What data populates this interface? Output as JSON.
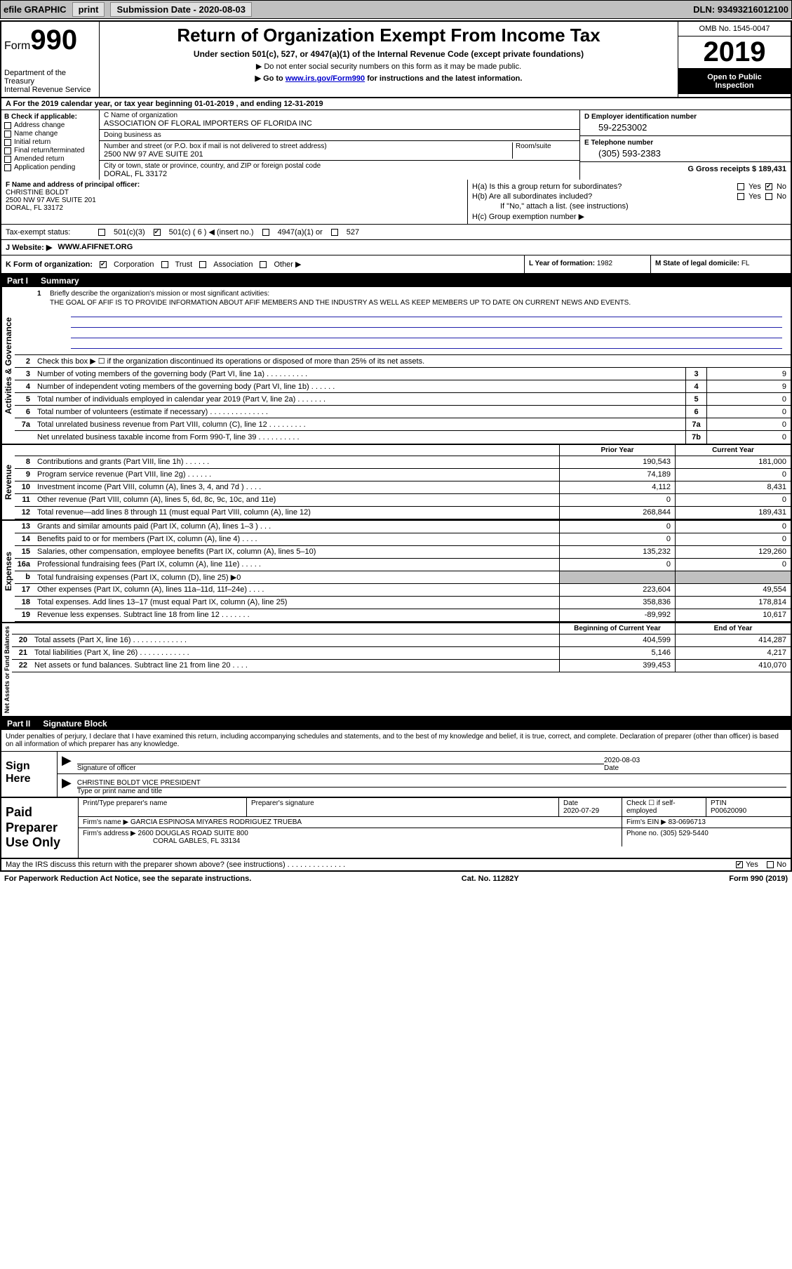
{
  "topbar": {
    "efile": "efile GRAPHIC",
    "print": "print",
    "sub_label": "Submission Date - ",
    "sub_date": "2020-08-03",
    "dln_label": "DLN: ",
    "dln": "93493216012100"
  },
  "header": {
    "form_prefix": "Form",
    "form_number": "990",
    "dept": "Department of the Treasury",
    "irs": "Internal Revenue Service",
    "title": "Return of Organization Exempt From Income Tax",
    "subtitle": "Under section 501(c), 527, or 4947(a)(1) of the Internal Revenue Code (except private foundations)",
    "note1": "▶ Do not enter social security numbers on this form as it may be made public.",
    "note2_pre": "▶ Go to ",
    "note2_link": "www.irs.gov/Form990",
    "note2_post": " for instructions and the latest information.",
    "omb": "OMB No. 1545-0047",
    "year": "2019",
    "open1": "Open to Public",
    "open2": "Inspection"
  },
  "section_a": {
    "text_pre": "A  For the 2019 calendar year, or tax year beginning ",
    "begin": "01-01-2019",
    "mid": "  , and ending ",
    "end": "12-31-2019"
  },
  "col_b": {
    "hdr": "B Check if applicable:",
    "items": [
      "Address change",
      "Name change",
      "Initial return",
      "Final return/terminated",
      "Amended return",
      "Application pending"
    ]
  },
  "col_c": {
    "name_lbl": "C Name of organization",
    "name": "ASSOCIATION OF FLORAL IMPORTERS OF FLORIDA INC",
    "dba_lbl": "Doing business as",
    "dba": "",
    "addr_lbl": "Number and street (or P.O. box if mail is not delivered to street address)",
    "room_lbl": "Room/suite",
    "addr": "2500 NW 97 AVE SUITE 201",
    "city_lbl": "City or town, state or province, country, and ZIP or foreign postal code",
    "city": "DORAL, FL  33172"
  },
  "col_d": {
    "ein_lbl": "D Employer identification number",
    "ein": "59-2253002",
    "tel_lbl": "E Telephone number",
    "tel": "(305) 593-2383",
    "gross_lbl": "G Gross receipts $ ",
    "gross": "189,431"
  },
  "f": {
    "lbl": "F  Name and address of principal officer:",
    "name": "CHRISTINE BOLDT",
    "addr1": "2500 NW 97 AVE SUITE 201",
    "addr2": "DORAL, FL  33172"
  },
  "h": {
    "a_lbl": "H(a)  Is this a group return for subordinates?",
    "b_lbl": "H(b)  Are all subordinates included?",
    "b_note": "If \"No,\" attach a list. (see instructions)",
    "c_lbl": "H(c)  Group exemption number ▶",
    "yes": "Yes",
    "no": "No"
  },
  "tax_status": {
    "lbl": "Tax-exempt status:",
    "o1": "501(c)(3)",
    "o2": "501(c) ( 6 ) ◀ (insert no.)",
    "o3": "4947(a)(1) or",
    "o4": "527"
  },
  "website": {
    "lbl": "J  Website: ▶",
    "val": "WWW.AFIFNET.ORG"
  },
  "k": {
    "lbl": "K Form of organization:",
    "o1": "Corporation",
    "o2": "Trust",
    "o3": "Association",
    "o4": "Other ▶",
    "l_lbl": "L Year of formation: ",
    "l_val": "1982",
    "m_lbl": "M State of legal domicile: ",
    "m_val": "FL"
  },
  "part1": {
    "tag": "Part I",
    "title": "Summary"
  },
  "mission": {
    "num": "1",
    "lbl": "Briefly describe the organization's mission or most significant activities:",
    "text": "THE GOAL OF AFIF IS TO PROVIDE INFORMATION ABOUT AFIF MEMBERS AND THE INDUSTRY AS WELL AS KEEP MEMBERS UP TO DATE ON CURRENT NEWS AND EVENTS."
  },
  "gov_label": "Activities & Governance",
  "gov_lines": [
    {
      "n": "2",
      "t": "Check this box ▶ ☐  if the organization discontinued its operations or disposed of more than 25% of its net assets.",
      "box": "",
      "val": ""
    },
    {
      "n": "3",
      "t": "Number of voting members of the governing body (Part VI, line 1a)  .   .   .   .   .   .   .   .   .   .",
      "box": "3",
      "val": "9"
    },
    {
      "n": "4",
      "t": "Number of independent voting members of the governing body (Part VI, line 1b)  .   .   .   .   .   .",
      "box": "4",
      "val": "9"
    },
    {
      "n": "5",
      "t": "Total number of individuals employed in calendar year 2019 (Part V, line 2a)  .   .   .   .   .   .   .",
      "box": "5",
      "val": "0"
    },
    {
      "n": "6",
      "t": "Total number of volunteers (estimate if necessary)   .   .   .   .   .   .   .   .   .   .   .   .   .   .",
      "box": "6",
      "val": "0"
    },
    {
      "n": "7a",
      "t": "Total unrelated business revenue from Part VIII, column (C), line 12  .   .   .   .   .   .   .   .   .",
      "box": "7a",
      "val": "0"
    },
    {
      "n": "",
      "t": "Net unrelated business taxable income from Form 990-T, line 39   .   .   .   .   .   .   .   .   .   .",
      "box": "7b",
      "val": "0"
    }
  ],
  "rev_label": "Revenue",
  "col_headers": {
    "c1": "Prior Year",
    "c2": "Current Year"
  },
  "rev_lines": [
    {
      "n": "8",
      "t": "Contributions and grants (Part VIII, line 1h)   .   .   .   .   .   .",
      "c1": "190,543",
      "c2": "181,000"
    },
    {
      "n": "9",
      "t": "Program service revenue (Part VIII, line 2g)   .   .   .   .   .   .",
      "c1": "74,189",
      "c2": "0"
    },
    {
      "n": "10",
      "t": "Investment income (Part VIII, column (A), lines 3, 4, and 7d )   .   .   .   .",
      "c1": "4,112",
      "c2": "8,431"
    },
    {
      "n": "11",
      "t": "Other revenue (Part VIII, column (A), lines 5, 6d, 8c, 9c, 10c, and 11e)",
      "c1": "0",
      "c2": "0"
    },
    {
      "n": "12",
      "t": "Total revenue—add lines 8 through 11 (must equal Part VIII, column (A), line 12)",
      "c1": "268,844",
      "c2": "189,431"
    }
  ],
  "exp_label": "Expenses",
  "exp_lines": [
    {
      "n": "13",
      "t": "Grants and similar amounts paid (Part IX, column (A), lines 1–3 )  .   .   .",
      "c1": "0",
      "c2": "0"
    },
    {
      "n": "14",
      "t": "Benefits paid to or for members (Part IX, column (A), line 4)  .   .   .   .",
      "c1": "0",
      "c2": "0"
    },
    {
      "n": "15",
      "t": "Salaries, other compensation, employee benefits (Part IX, column (A), lines 5–10)",
      "c1": "135,232",
      "c2": "129,260"
    },
    {
      "n": "16a",
      "t": "Professional fundraising fees (Part IX, column (A), line 11e)  .   .   .   .   .",
      "c1": "0",
      "c2": "0"
    },
    {
      "n": "b",
      "t": "Total fundraising expenses (Part IX, column (D), line 25) ▶0",
      "c1": "__shade__",
      "c2": "__shade__"
    },
    {
      "n": "17",
      "t": "Other expenses (Part IX, column (A), lines 11a–11d, 11f–24e)  .   .   .   .",
      "c1": "223,604",
      "c2": "49,554"
    },
    {
      "n": "18",
      "t": "Total expenses. Add lines 13–17 (must equal Part IX, column (A), line 25)",
      "c1": "358,836",
      "c2": "178,814"
    },
    {
      "n": "19",
      "t": "Revenue less expenses. Subtract line 18 from line 12  .   .   .   .   .   .   .",
      "c1": "-89,992",
      "c2": "10,617"
    }
  ],
  "na_label": "Net Assets or Fund Balances",
  "na_headers": {
    "c1": "Beginning of Current Year",
    "c2": "End of Year"
  },
  "na_lines": [
    {
      "n": "20",
      "t": "Total assets (Part X, line 16)  .   .   .   .   .   .   .   .   .   .   .   .   .",
      "c1": "404,599",
      "c2": "414,287"
    },
    {
      "n": "21",
      "t": "Total liabilities (Part X, line 26)  .   .   .   .   .   .   .   .   .   .   .   .",
      "c1": "5,146",
      "c2": "4,217"
    },
    {
      "n": "22",
      "t": "Net assets or fund balances. Subtract line 21 from line 20  .   .   .   .",
      "c1": "399,453",
      "c2": "410,070"
    }
  ],
  "part2": {
    "tag": "Part II",
    "title": "Signature Block"
  },
  "sig_intro": "Under penalties of perjury, I declare that I have examined this return, including accompanying schedules and statements, and to the best of my knowledge and belief, it is true, correct, and complete. Declaration of preparer (other than officer) is based on all information of which preparer has any knowledge.",
  "sign": {
    "left": "Sign Here",
    "sig_lbl": "Signature of officer",
    "date_lbl": "Date",
    "date": "2020-08-03",
    "name": "CHRISTINE BOLDT  VICE PRESIDENT",
    "name_lbl": "Type or print name and title"
  },
  "prep": {
    "left": "Paid Preparer Use Only",
    "h1": "Print/Type preparer's name",
    "h2": "Preparer's signature",
    "h3": "Date",
    "date": "2020-07-29",
    "h4_pre": "Check ☐ if self-employed",
    "h5": "PTIN",
    "ptin": "P00620090",
    "firm_lbl": "Firm's name    ▶",
    "firm": "GARCIA ESPINOSA MIYARES RODRIGUEZ TRUEBA",
    "ein_lbl": "Firm's EIN ▶",
    "ein": "83-0696713",
    "addr_lbl": "Firm's address ▶",
    "addr1": "2600 DOUGLAS ROAD SUITE 800",
    "addr2": "CORAL GABLES, FL  33134",
    "phone_lbl": "Phone no. ",
    "phone": "(305) 529-5440"
  },
  "footer": {
    "q": "May the IRS discuss this return with the preparer shown above? (see instructions)   .   .   .   .   .   .   .   .   .   .   .   .   .   .",
    "yes": "Yes",
    "no": "No"
  },
  "bottom": {
    "left": "For Paperwork Reduction Act Notice, see the separate instructions.",
    "mid": "Cat. No. 11282Y",
    "right": "Form 990 (2019)"
  },
  "colors": {
    "topbar_bg": "#c0c0c0",
    "border": "#000000",
    "link": "#0000cc",
    "shade": "#c0c0c0",
    "blueline": "#2020aa"
  }
}
